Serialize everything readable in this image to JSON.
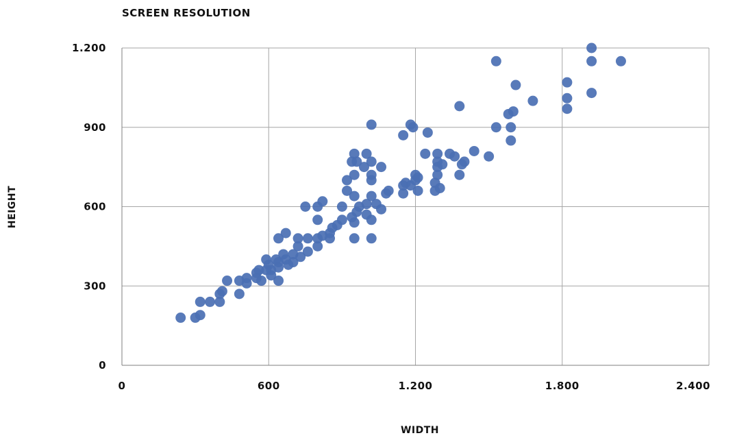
{
  "chart_data": {
    "type": "scatter",
    "title": "SCREEN RESOLUTION",
    "xlabel": "WIDTH",
    "ylabel": "HEIGHT",
    "xlim": [
      0,
      2400
    ],
    "ylim": [
      0,
      1200
    ],
    "xticks": [
      0,
      600,
      1200,
      1800,
      2400
    ],
    "xtick_labels": [
      "0",
      "600",
      "1.200",
      "1.800",
      "2.400"
    ],
    "yticks": [
      0,
      300,
      600,
      900,
      1200
    ],
    "ytick_labels": [
      "0",
      "300",
      "600",
      "900",
      "1.200"
    ],
    "grid": true,
    "legend": "none",
    "point_color": "#4a6fb3",
    "points": [
      [
        240,
        180
      ],
      [
        300,
        180
      ],
      [
        320,
        190
      ],
      [
        320,
        240
      ],
      [
        360,
        240
      ],
      [
        400,
        240
      ],
      [
        400,
        270
      ],
      [
        410,
        280
      ],
      [
        430,
        320
      ],
      [
        480,
        270
      ],
      [
        480,
        320
      ],
      [
        510,
        330
      ],
      [
        510,
        310
      ],
      [
        550,
        330
      ],
      [
        550,
        350
      ],
      [
        560,
        360
      ],
      [
        570,
        320
      ],
      [
        590,
        400
      ],
      [
        590,
        360
      ],
      [
        600,
        380
      ],
      [
        610,
        360
      ],
      [
        610,
        340
      ],
      [
        630,
        400
      ],
      [
        640,
        390
      ],
      [
        640,
        370
      ],
      [
        640,
        320
      ],
      [
        640,
        480
      ],
      [
        660,
        420
      ],
      [
        670,
        500
      ],
      [
        670,
        400
      ],
      [
        680,
        380
      ],
      [
        700,
        420
      ],
      [
        700,
        390
      ],
      [
        720,
        450
      ],
      [
        720,
        480
      ],
      [
        730,
        410
      ],
      [
        750,
        600
      ],
      [
        760,
        480
      ],
      [
        760,
        430
      ],
      [
        800,
        600
      ],
      [
        800,
        550
      ],
      [
        800,
        480
      ],
      [
        800,
        450
      ],
      [
        820,
        620
      ],
      [
        820,
        490
      ],
      [
        850,
        500
      ],
      [
        850,
        480
      ],
      [
        860,
        520
      ],
      [
        880,
        530
      ],
      [
        900,
        600
      ],
      [
        900,
        550
      ],
      [
        920,
        700
      ],
      [
        920,
        660
      ],
      [
        940,
        770
      ],
      [
        940,
        560
      ],
      [
        950,
        800
      ],
      [
        950,
        720
      ],
      [
        950,
        640
      ],
      [
        950,
        540
      ],
      [
        950,
        480
      ],
      [
        960,
        770
      ],
      [
        960,
        580
      ],
      [
        970,
        600
      ],
      [
        990,
        750
      ],
      [
        1000,
        800
      ],
      [
        1000,
        610
      ],
      [
        1000,
        570
      ],
      [
        1020,
        910
      ],
      [
        1020,
        770
      ],
      [
        1020,
        720
      ],
      [
        1020,
        700
      ],
      [
        1020,
        640
      ],
      [
        1020,
        550
      ],
      [
        1020,
        480
      ],
      [
        1040,
        610
      ],
      [
        1060,
        750
      ],
      [
        1060,
        590
      ],
      [
        1080,
        650
      ],
      [
        1090,
        660
      ],
      [
        1150,
        870
      ],
      [
        1150,
        680
      ],
      [
        1150,
        650
      ],
      [
        1160,
        690
      ],
      [
        1180,
        910
      ],
      [
        1180,
        680
      ],
      [
        1190,
        900
      ],
      [
        1200,
        720
      ],
      [
        1200,
        700
      ],
      [
        1210,
        710
      ],
      [
        1210,
        660
      ],
      [
        1240,
        800
      ],
      [
        1250,
        880
      ],
      [
        1280,
        690
      ],
      [
        1280,
        660
      ],
      [
        1290,
        800
      ],
      [
        1290,
        770
      ],
      [
        1290,
        750
      ],
      [
        1290,
        720
      ],
      [
        1300,
        670
      ],
      [
        1310,
        760
      ],
      [
        1340,
        800
      ],
      [
        1360,
        790
      ],
      [
        1380,
        980
      ],
      [
        1380,
        720
      ],
      [
        1390,
        760
      ],
      [
        1400,
        770
      ],
      [
        1440,
        810
      ],
      [
        1500,
        790
      ],
      [
        1530,
        1150
      ],
      [
        1530,
        900
      ],
      [
        1580,
        950
      ],
      [
        1590,
        900
      ],
      [
        1590,
        850
      ],
      [
        1600,
        960
      ],
      [
        1610,
        1060
      ],
      [
        1680,
        1000
      ],
      [
        1820,
        1070
      ],
      [
        1820,
        1010
      ],
      [
        1820,
        970
      ],
      [
        1920,
        1200
      ],
      [
        1920,
        1150
      ],
      [
        1920,
        1030
      ],
      [
        2040,
        1150
      ]
    ]
  }
}
